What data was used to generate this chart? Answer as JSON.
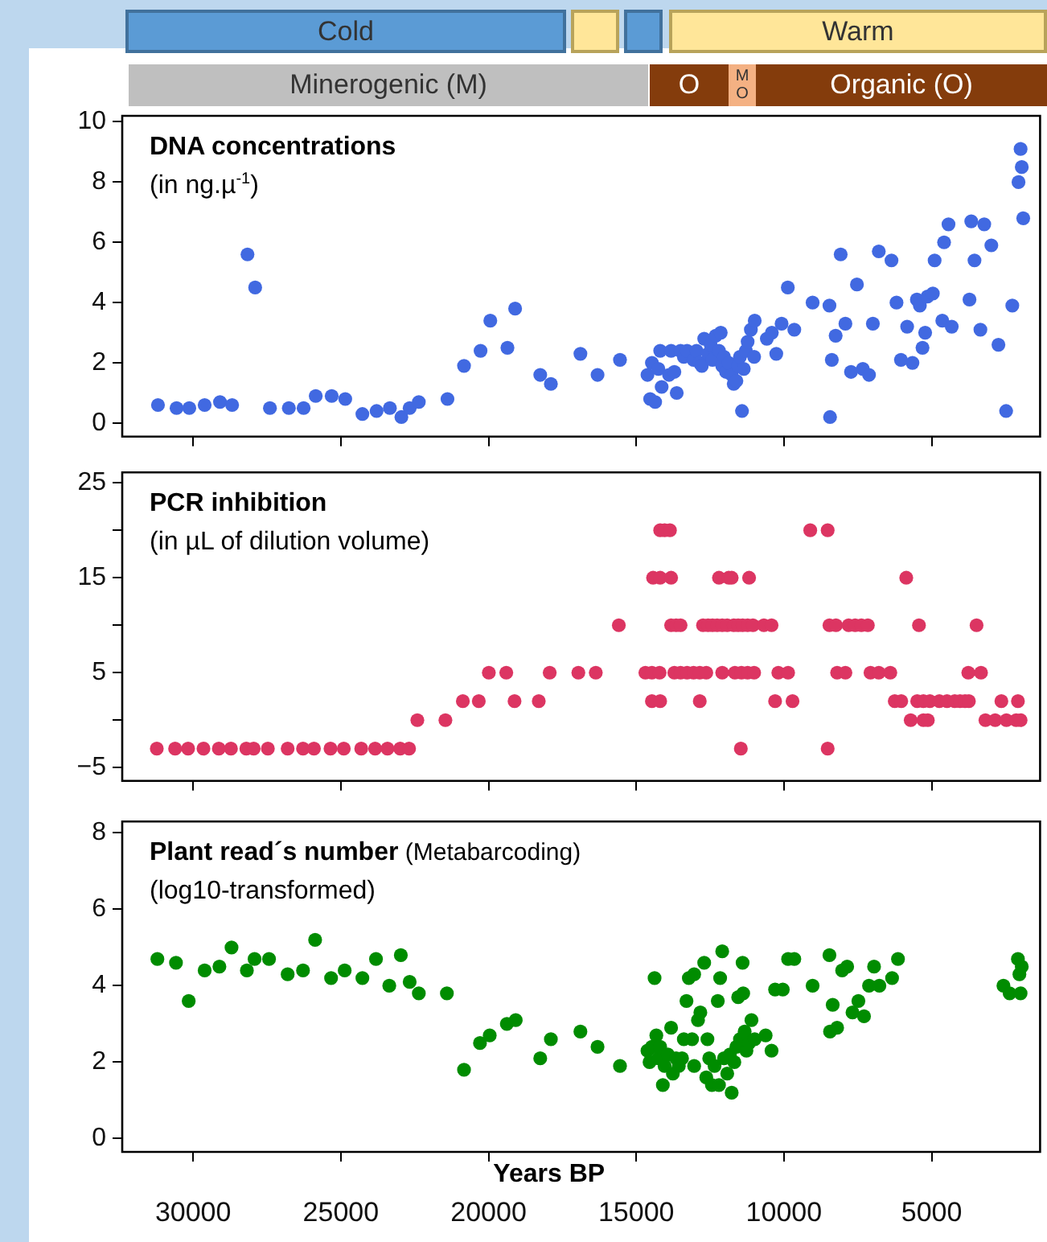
{
  "chart_data": [
    {
      "type": "scatter",
      "title": "DNA concentrations",
      "subtitle": "(in ng.µ$^{-1}$)",
      "color": "#4169e1",
      "marker": "circle",
      "tick_labels": "y",
      "xlim": [
        32400,
        1330
      ],
      "xticks": [
        30000,
        25000,
        20000,
        15000,
        10000,
        5000
      ],
      "ylim": [
        -0.45,
        10.2
      ],
      "yticks": [
        0,
        2,
        4,
        6,
        8,
        10
      ],
      "annotations": [
        "Cold",
        "Warm",
        "Minerogenic (M)",
        "O",
        "M\nO",
        "Organic (O)"
      ],
      "x": [
        31190,
        30560,
        30130,
        29610,
        29090,
        28680,
        28160,
        27900,
        27400,
        26760,
        26260,
        25850,
        25310,
        24850,
        24270,
        23790,
        23340,
        22950,
        22670,
        22360,
        21390,
        20830,
        20270,
        19940,
        19360,
        19100,
        18250,
        17890,
        16890,
        16310,
        15550,
        14620,
        14530,
        14360,
        14470,
        14250,
        14190,
        14140,
        13890,
        13820,
        13710,
        13630,
        13500,
        13390,
        13280,
        13060,
        12960,
        12850,
        12780,
        12700,
        12570,
        12480,
        12420,
        12310,
        12200,
        12140,
        12090,
        12030,
        11960,
        11870,
        11770,
        11700,
        11610,
        11550,
        11490,
        11420,
        11360,
        11290,
        11230,
        11120,
        11010,
        10990,
        10580,
        10410,
        10260,
        10080,
        9870,
        9650,
        9030,
        8460,
        8440,
        8380,
        8250,
        8080,
        7920,
        7730,
        7530,
        7330,
        7120,
        6990,
        6790,
        6360,
        6190,
        6040,
        5830,
        5650,
        5500,
        5400,
        5310,
        5220,
        5140,
        4960,
        4900,
        4640,
        4580,
        4430,
        4320,
        3720,
        3660,
        3550,
        3350,
        3220,
        2980,
        2740,
        2480,
        2270,
        2060,
        1990,
        1950,
        1900
      ],
      "values": [
        0.6,
        0.5,
        0.5,
        0.6,
        0.7,
        0.6,
        5.6,
        4.5,
        0.5,
        0.5,
        0.5,
        0.9,
        0.9,
        0.8,
        0.3,
        0.4,
        0.5,
        0.2,
        0.5,
        0.7,
        0.8,
        1.9,
        2.4,
        3.4,
        2.5,
        3.8,
        1.6,
        1.3,
        2.3,
        1.6,
        2.1,
        1.6,
        0.8,
        0.7,
        2.0,
        1.8,
        2.4,
        1.2,
        1.6,
        2.4,
        1.7,
        1.0,
        2.4,
        2.2,
        2.4,
        2.1,
        2.4,
        2.0,
        1.9,
        2.8,
        2.3,
        2.6,
        2.1,
        2.9,
        2.4,
        3.0,
        1.9,
        2.2,
        1.7,
        2.0,
        1.6,
        1.3,
        1.4,
        1.9,
        2.2,
        0.4,
        1.8,
        2.4,
        2.7,
        3.1,
        2.2,
        3.4,
        2.8,
        3.0,
        2.3,
        3.3,
        4.5,
        3.1,
        4.0,
        3.9,
        0.2,
        2.1,
        2.9,
        5.6,
        3.3,
        1.7,
        4.6,
        1.8,
        1.6,
        3.3,
        5.7,
        5.4,
        4.0,
        2.1,
        3.2,
        2.0,
        4.1,
        3.9,
        2.5,
        3.0,
        4.2,
        4.3,
        5.4,
        3.4,
        6.0,
        6.6,
        3.2,
        4.1,
        6.7,
        5.4,
        3.1,
        6.6,
        5.9,
        2.6,
        0.4,
        3.9,
        8.0,
        9.1,
        8.5,
        6.8
      ]
    },
    {
      "type": "scatter",
      "title": "PCR inhibition",
      "subtitle": "(in µL of dilution volume)",
      "color": "#dc3562",
      "marker": "circle",
      "tick_labels": "y",
      "xlim": [
        32400,
        1330
      ],
      "xticks": [
        30000,
        25000,
        20000,
        15000,
        10000,
        5000
      ],
      "ylim": [
        -6.4,
        26.1
      ],
      "yticks": [
        -5,
        {
          "value": 0,
          "label": null
        },
        5,
        {
          "value": 10,
          "label": null
        },
        15,
        {
          "value": 20,
          "label": null
        },
        25
      ],
      "x": [
        31230,
        30610,
        30170,
        29650,
        29130,
        28720,
        28200,
        27950,
        27470,
        26800,
        26280,
        25910,
        25350,
        24900,
        24310,
        23840,
        23420,
        22990,
        22690,
        11460,
        8520,
        22410,
        21460,
        5710,
        5280,
        5130,
        3180,
        2850,
        2470,
        2140,
        1990,
        20870,
        20330,
        19120,
        18300,
        14470,
        14190,
        12850,
        10300,
        9710,
        6250,
        6030,
        5490,
        5280,
        5060,
        4740,
        4480,
        4220,
        4040,
        3870,
        3740,
        2640,
        2080,
        19990,
        19400,
        17930,
        16960,
        16370,
        14690,
        14470,
        14210,
        13710,
        13500,
        13280,
        13060,
        12850,
        12630,
        12090,
        11660,
        11440,
        11230,
        11010,
        10190,
        9860,
        8200,
        7920,
        7070,
        6790,
        6400,
        3760,
        3330,
        15590,
        13820,
        13650,
        13500,
        12740,
        12570,
        12420,
        12260,
        12090,
        11920,
        11700,
        11550,
        11400,
        11230,
        11050,
        10680,
        10420,
        8460,
        8240,
        7810,
        7590,
        7380,
        7160,
        5430,
        3480,
        14430,
        14190,
        13820,
        12200,
        11870,
        11770,
        11180,
        5860,
        14190,
        14040,
        13860,
        9110,
        8520
      ],
      "values": [
        -3,
        -3,
        -3,
        -3,
        -3,
        -3,
        -3,
        -3,
        -3,
        -3,
        -3,
        -3,
        -3,
        -3,
        -3,
        -3,
        -3,
        -3,
        -3,
        -3,
        -3,
        0,
        0,
        0,
        0,
        0,
        0,
        0,
        0,
        0,
        0,
        2,
        2,
        2,
        2,
        2,
        2,
        2,
        2,
        2,
        2,
        2,
        2,
        2,
        2,
        2,
        2,
        2,
        2,
        2,
        2,
        2,
        2,
        5,
        5,
        5,
        5,
        5,
        5,
        5,
        5,
        5,
        5,
        5,
        5,
        5,
        5,
        5,
        5,
        5,
        5,
        5,
        5,
        5,
        5,
        5,
        5,
        5,
        5,
        5,
        5,
        10,
        10,
        10,
        10,
        10,
        10,
        10,
        10,
        10,
        10,
        10,
        10,
        10,
        10,
        10,
        10,
        10,
        10,
        10,
        10,
        10,
        10,
        10,
        10,
        10,
        15,
        15,
        15,
        15,
        15,
        15,
        15,
        15,
        20,
        20,
        20,
        20,
        20
      ]
    },
    {
      "type": "scatter",
      "title": "Plant read´s number (Metabarcoding)",
      "subtitle": "(log10-transformed)",
      "xlabel": "Years BP",
      "color": "#008c00",
      "marker": "circle",
      "xlim": [
        32400,
        1330
      ],
      "xticks": [
        30000,
        25000,
        20000,
        15000,
        10000,
        5000
      ],
      "ylim": [
        -0.35,
        8.3
      ],
      "yticks": [
        0,
        2,
        4,
        6,
        8
      ],
      "x": [
        31210,
        30580,
        30150,
        29610,
        29110,
        28700,
        28180,
        27920,
        27430,
        26800,
        26280,
        25870,
        25330,
        24870,
        24270,
        23810,
        23360,
        22970,
        22670,
        22360,
        21410,
        20830,
        20290,
        19960,
        19380,
        19080,
        18250,
        17890,
        16890,
        16310,
        15550,
        14620,
        14550,
        14470,
        14380,
        14320,
        14250,
        14190,
        14100,
        14040,
        13930,
        13820,
        13760,
        13650,
        13560,
        13450,
        13390,
        13300,
        13220,
        13110,
        13040,
        13040,
        12910,
        12830,
        12700,
        12630,
        12590,
        12530,
        12440,
        12350,
        12240,
        12200,
        12160,
        12090,
        12030,
        11920,
        11830,
        11770,
        11680,
        11610,
        11550,
        11490,
        11400,
        11380,
        11330,
        11270,
        11180,
        11100,
        10990,
        10620,
        10420,
        10300,
        10040,
        9860,
        9650,
        9030,
        8460,
        8440,
        8350,
        8200,
        8030,
        7860,
        7680,
        7480,
        7290,
        7120,
        6950,
        6770,
        6340,
        6140,
        2570,
        2360,
        2080,
        2030,
        1990,
        1950
      ],
      "values": [
        4.7,
        4.6,
        3.6,
        4.4,
        4.5,
        5.0,
        4.4,
        4.7,
        4.7,
        4.3,
        4.4,
        5.2,
        4.2,
        4.4,
        4.2,
        4.7,
        4.0,
        4.8,
        4.1,
        3.8,
        3.8,
        1.8,
        2.5,
        2.7,
        3.0,
        3.1,
        2.1,
        2.6,
        2.8,
        2.4,
        1.9,
        2.3,
        2.0,
        2.4,
        4.2,
        2.7,
        2.1,
        2.4,
        1.4,
        1.9,
        2.2,
        2.9,
        1.7,
        2.1,
        1.9,
        2.1,
        2.6,
        3.6,
        4.2,
        2.6,
        4.3,
        1.9,
        3.1,
        3.3,
        4.6,
        1.6,
        2.6,
        2.1,
        1.4,
        1.9,
        3.6,
        1.4,
        4.2,
        4.9,
        2.1,
        1.7,
        2.2,
        1.2,
        2.0,
        2.4,
        3.7,
        2.6,
        4.6,
        3.8,
        2.8,
        2.3,
        2.5,
        3.1,
        2.6,
        2.7,
        2.3,
        3.9,
        3.9,
        4.7,
        4.7,
        4.0,
        4.8,
        2.8,
        3.5,
        2.9,
        4.4,
        4.5,
        3.3,
        3.6,
        3.2,
        4.0,
        4.5,
        4.0,
        4.2,
        4.7,
        4.0,
        3.8,
        4.7,
        4.3,
        3.8,
        4.5
      ]
    }
  ]
}
